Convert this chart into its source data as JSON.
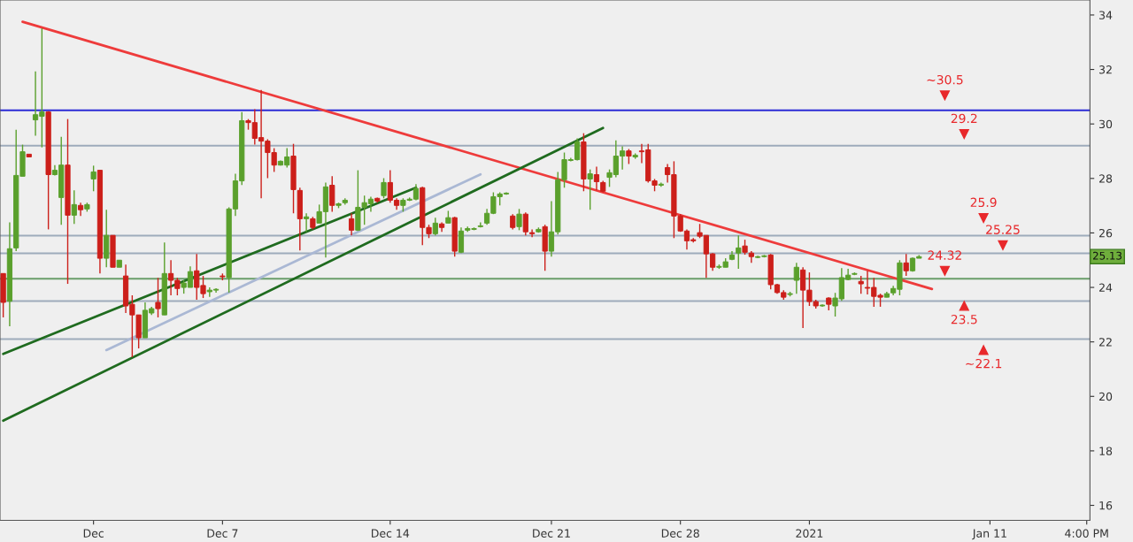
{
  "chart_data": {
    "type": "candlestick",
    "categories": [
      null,
      null,
      null,
      null,
      null,
      null,
      null,
      null,
      null,
      null,
      null,
      null,
      null,
      null,
      "Dec",
      null,
      null,
      null,
      null,
      null,
      null,
      null,
      null,
      null,
      null,
      null,
      null,
      null,
      null,
      null,
      null,
      null,
      null,
      null,
      "Dec 7",
      null,
      null,
      null,
      null,
      null,
      null,
      null,
      null,
      null,
      null,
      null,
      null,
      null,
      null,
      null,
      null,
      null,
      null,
      null,
      null,
      null,
      null,
      null,
      null,
      null,
      "Dec 14",
      null,
      null,
      null,
      null,
      null,
      null,
      null,
      null,
      null,
      null,
      null,
      null,
      null,
      null,
      null,
      null,
      null,
      null,
      null,
      null,
      null,
      null,
      null,
      null,
      "Dec 21",
      null,
      null,
      null,
      null,
      null,
      null,
      null,
      null,
      null,
      null,
      null,
      null,
      null,
      null,
      null,
      null,
      null,
      null,
      null,
      "Dec 28",
      null,
      null,
      null,
      null,
      null,
      null,
      null,
      null,
      null,
      null,
      null,
      null,
      null,
      null,
      null,
      null,
      null,
      null,
      null,
      "2021",
      null,
      null,
      null,
      null,
      null,
      null,
      null,
      null,
      null,
      null,
      null,
      null,
      null,
      null,
      null,
      null,
      null,
      null,
      null,
      null,
      null,
      null,
      null,
      null,
      null,
      null,
      null,
      "Jan 11",
      null,
      null,
      null,
      null,
      null,
      null,
      null,
      null,
      null,
      null,
      null,
      null,
      null,
      null,
      "4:00 PM"
    ],
    "ohlc": [
      [
        24.51,
        24.51,
        22.9,
        23.45
      ],
      [
        23.49,
        26.39,
        22.57,
        25.42
      ],
      [
        25.45,
        29.79,
        25.33,
        28.11
      ],
      [
        28.08,
        29.24,
        28.08,
        28.98
      ],
      [
        28.89,
        28.89,
        28.79,
        28.79
      ],
      [
        30.15,
        31.93,
        29.57,
        30.34
      ],
      [
        30.28,
        33.51,
        29.14,
        30.44
      ],
      [
        30.44,
        30.47,
        26.13,
        28.14
      ],
      [
        28.14,
        28.49,
        28.11,
        28.3
      ],
      [
        27.3,
        29.53,
        26.3,
        28.49
      ],
      [
        28.49,
        30.18,
        24.13,
        26.65
      ],
      [
        26.65,
        27.56,
        26.33,
        27.04
      ],
      [
        27.01,
        27.11,
        26.62,
        26.85
      ],
      [
        26.88,
        27.11,
        26.78,
        27.04
      ],
      [
        27.98,
        28.47,
        27.53,
        28.24
      ],
      [
        28.3,
        28.3,
        24.51,
        25.07
      ],
      [
        25.07,
        26.85,
        24.74,
        25.91
      ],
      [
        25.91,
        25.91,
        24.74,
        24.74
      ],
      [
        24.74,
        25.0,
        24.74,
        25.0
      ],
      [
        24.42,
        24.84,
        23.06,
        23.32
      ],
      [
        23.38,
        23.71,
        21.44,
        22.99
      ],
      [
        22.99,
        22.99,
        21.76,
        22.15
      ],
      [
        22.15,
        23.45,
        22.15,
        23.16
      ],
      [
        23.06,
        23.29,
        22.99,
        23.22
      ],
      [
        23.45,
        24.35,
        22.9,
        23.22
      ],
      [
        22.99,
        25.65,
        22.99,
        24.51
      ],
      [
        24.51,
        25.0,
        23.71,
        24.26
      ],
      [
        24.26,
        24.35,
        23.71,
        23.96
      ],
      [
        24.0,
        24.26,
        23.77,
        24.16
      ],
      [
        24.0,
        24.77,
        24.0,
        24.58
      ],
      [
        24.61,
        25.23,
        23.55,
        24.0
      ],
      [
        24.07,
        24.42,
        23.61,
        23.77
      ],
      [
        23.84,
        24.0,
        23.65,
        23.9
      ],
      [
        23.9,
        23.97,
        23.81,
        23.93
      ],
      [
        24.42,
        24.51,
        24.26,
        24.39
      ],
      [
        24.36,
        26.94,
        23.81,
        26.88
      ],
      [
        26.88,
        28.17,
        26.62,
        27.91
      ],
      [
        27.91,
        30.44,
        27.76,
        30.12
      ],
      [
        30.12,
        30.18,
        29.79,
        30.05
      ],
      [
        30.05,
        30.54,
        29.24,
        29.47
      ],
      [
        29.5,
        31.25,
        27.27,
        29.37
      ],
      [
        29.37,
        29.44,
        28.01,
        28.95
      ],
      [
        28.95,
        29.11,
        28.24,
        28.49
      ],
      [
        28.49,
        28.66,
        28.47,
        28.63
      ],
      [
        28.49,
        29.11,
        28.4,
        28.79
      ],
      [
        28.82,
        29.27,
        26.72,
        27.59
      ],
      [
        27.56,
        27.66,
        25.36,
        26.52
      ],
      [
        26.52,
        26.72,
        26.04,
        26.59
      ],
      [
        26.52,
        26.59,
        26.13,
        26.2
      ],
      [
        26.36,
        27.04,
        26.36,
        26.78
      ],
      [
        26.78,
        27.85,
        25.1,
        27.69
      ],
      [
        27.75,
        28.08,
        26.78,
        27.01
      ],
      [
        27.01,
        27.11,
        26.91,
        27.07
      ],
      [
        27.11,
        27.27,
        27.04,
        27.2
      ],
      [
        26.52,
        26.72,
        25.91,
        26.1
      ],
      [
        26.1,
        28.3,
        26.07,
        26.94
      ],
      [
        26.94,
        27.37,
        26.3,
        27.11
      ],
      [
        27.07,
        27.33,
        26.78,
        27.24
      ],
      [
        27.27,
        27.3,
        27.11,
        27.17
      ],
      [
        27.37,
        28.01,
        27.27,
        27.85
      ],
      [
        27.85,
        28.3,
        27.11,
        27.2
      ],
      [
        27.2,
        27.27,
        26.85,
        27.01
      ],
      [
        27.01,
        27.27,
        26.78,
        27.2
      ],
      [
        27.2,
        27.3,
        27.17,
        27.24
      ],
      [
        27.24,
        27.79,
        27.2,
        27.63
      ],
      [
        27.66,
        27.69,
        25.55,
        26.2
      ],
      [
        26.2,
        26.3,
        25.81,
        25.97
      ],
      [
        25.97,
        26.56,
        25.91,
        26.36
      ],
      [
        26.33,
        26.39,
        26.04,
        26.2
      ],
      [
        26.36,
        26.81,
        26.36,
        26.56
      ],
      [
        26.56,
        26.59,
        25.13,
        25.33
      ],
      [
        25.29,
        26.2,
        25.26,
        26.07
      ],
      [
        26.1,
        26.23,
        26.04,
        26.16
      ],
      [
        26.13,
        26.2,
        26.1,
        26.16
      ],
      [
        26.23,
        26.39,
        26.2,
        26.26
      ],
      [
        26.36,
        26.88,
        26.3,
        26.72
      ],
      [
        26.72,
        27.49,
        26.69,
        27.33
      ],
      [
        27.33,
        27.49,
        27.01,
        27.43
      ],
      [
        27.43,
        27.49,
        27.4,
        27.46
      ],
      [
        26.62,
        26.69,
        26.13,
        26.2
      ],
      [
        26.23,
        26.88,
        26.1,
        26.69
      ],
      [
        26.69,
        26.75,
        25.91,
        26.04
      ],
      [
        26.01,
        26.13,
        25.84,
        25.97
      ],
      [
        26.04,
        26.2,
        26.01,
        26.13
      ],
      [
        26.23,
        26.3,
        24.61,
        25.33
      ],
      [
        25.33,
        27.17,
        25.13,
        26.04
      ],
      [
        26.04,
        28.24,
        25.94,
        27.95
      ],
      [
        27.95,
        28.95,
        27.66,
        28.69
      ],
      [
        28.66,
        28.76,
        28.63,
        28.69
      ],
      [
        28.69,
        29.47,
        28.66,
        29.34
      ],
      [
        29.34,
        29.66,
        27.53,
        27.98
      ],
      [
        27.98,
        28.33,
        26.85,
        28.17
      ],
      [
        28.14,
        28.43,
        27.56,
        27.88
      ],
      [
        27.85,
        27.91,
        27.49,
        27.53
      ],
      [
        28.04,
        28.33,
        27.69,
        28.21
      ],
      [
        28.14,
        29.4,
        28.04,
        28.82
      ],
      [
        28.82,
        29.18,
        28.33,
        29.01
      ],
      [
        29.01,
        29.08,
        28.53,
        28.82
      ],
      [
        28.79,
        28.92,
        28.72,
        28.85
      ],
      [
        29.01,
        29.27,
        28.56,
        28.98
      ],
      [
        29.05,
        29.27,
        27.85,
        27.91
      ],
      [
        27.91,
        27.98,
        27.53,
        27.75
      ],
      [
        27.75,
        27.85,
        27.69,
        27.79
      ],
      [
        28.4,
        28.53,
        27.85,
        28.14
      ],
      [
        28.14,
        28.63,
        25.81,
        26.62
      ],
      [
        26.62,
        26.69,
        26.04,
        26.07
      ],
      [
        26.07,
        26.13,
        25.39,
        25.71
      ],
      [
        25.75,
        25.81,
        25.65,
        25.71
      ],
      [
        26.01,
        26.33,
        25.81,
        25.88
      ],
      [
        25.91,
        25.91,
        24.35,
        25.23
      ],
      [
        25.23,
        25.26,
        24.61,
        24.74
      ],
      [
        24.74,
        24.84,
        24.68,
        24.77
      ],
      [
        24.74,
        25.07,
        24.74,
        24.94
      ],
      [
        25.03,
        25.33,
        25.0,
        25.19
      ],
      [
        25.26,
        25.91,
        24.68,
        25.45
      ],
      [
        25.52,
        25.75,
        25.2,
        25.29
      ],
      [
        25.26,
        25.33,
        24.9,
        25.13
      ],
      [
        25.1,
        25.16,
        25.07,
        25.13
      ],
      [
        25.13,
        25.19,
        25.1,
        25.16
      ],
      [
        25.19,
        25.23,
        23.93,
        24.1
      ],
      [
        24.1,
        24.13,
        23.77,
        23.81
      ],
      [
        23.81,
        23.9,
        23.55,
        23.64
      ],
      [
        23.74,
        23.84,
        23.67,
        23.77
      ],
      [
        24.26,
        24.9,
        23.77,
        24.74
      ],
      [
        24.64,
        24.74,
        22.51,
        23.9
      ],
      [
        23.9,
        24.55,
        23.32,
        23.48
      ],
      [
        23.48,
        23.55,
        23.22,
        23.32
      ],
      [
        23.32,
        23.38,
        23.29,
        23.35
      ],
      [
        23.61,
        23.64,
        23.16,
        23.38
      ],
      [
        23.32,
        23.8,
        22.93,
        23.61
      ],
      [
        23.58,
        24.71,
        23.51,
        24.36
      ],
      [
        24.29,
        24.68,
        24.26,
        24.45
      ],
      [
        24.48,
        24.55,
        24.45,
        24.51
      ],
      [
        24.22,
        24.42,
        23.77,
        24.13
      ],
      [
        24.0,
        24.61,
        23.74,
        23.97
      ],
      [
        24.0,
        24.35,
        23.29,
        23.67
      ],
      [
        23.71,
        23.77,
        23.29,
        23.64
      ],
      [
        23.64,
        23.84,
        23.64,
        23.77
      ],
      [
        23.8,
        24.06,
        23.71,
        23.96
      ],
      [
        23.93,
        25.0,
        23.71,
        24.9
      ],
      [
        24.9,
        25.23,
        24.42,
        24.61
      ],
      [
        24.61,
        25.1,
        24.58,
        25.07
      ],
      [
        25.07,
        25.19,
        25.07,
        25.13
      ],
      null,
      null,
      null,
      null,
      null,
      null,
      null,
      null,
      null,
      null,
      null,
      null,
      null,
      null,
      null,
      null,
      null,
      null,
      null,
      null,
      null,
      null,
      null,
      null,
      null,
      null
    ],
    "series": [
      {
        "type": "line",
        "color": "#ee3b3b",
        "values": [
          null,
          null,
          null,
          33.75,
          null,
          null,
          null,
          null,
          null,
          null,
          null,
          null,
          null,
          null,
          null,
          null,
          null,
          null,
          null,
          null,
          null,
          null,
          null,
          null,
          null,
          null,
          null,
          null,
          null,
          null,
          null,
          null,
          null,
          null,
          null,
          null,
          null,
          null,
          null,
          null,
          null,
          null,
          null,
          null,
          null,
          null,
          null,
          null,
          null,
          null,
          null,
          null,
          null,
          null,
          null,
          null,
          null,
          null,
          null,
          null,
          null,
          null,
          null,
          null,
          null,
          null,
          null,
          null,
          null,
          null,
          null,
          null,
          null,
          null,
          null,
          null,
          null,
          null,
          null,
          null,
          null,
          null,
          null,
          null,
          null,
          null,
          null,
          null,
          null,
          null,
          null,
          null,
          null,
          null,
          null,
          null,
          null,
          null,
          null,
          null,
          null,
          null,
          null,
          null,
          null,
          null,
          null,
          null,
          null,
          null,
          null,
          null,
          null,
          null,
          null,
          null,
          null,
          null,
          null,
          null,
          null,
          null,
          null,
          null,
          null,
          null,
          null,
          null,
          null,
          null,
          null,
          null,
          null,
          null,
          null,
          null,
          null,
          null,
          null,
          null,
          null,
          null,
          null,
          null,
          23.94,
          null,
          null,
          null,
          null,
          null,
          null,
          null,
          null,
          null,
          null,
          null,
          null,
          null,
          null,
          null,
          null,
          null,
          null,
          null,
          null,
          null,
          null,
          null,
          null
        ]
      },
      {
        "type": "line",
        "color": "#1f6b1f",
        "values": [
          21.56,
          null,
          null,
          null,
          null,
          null,
          null,
          null,
          null,
          null,
          null,
          null,
          null,
          null,
          null,
          null,
          null,
          null,
          null,
          null,
          null,
          null,
          null,
          null,
          null,
          null,
          null,
          null,
          null,
          null,
          null,
          null,
          null,
          null,
          null,
          null,
          null,
          null,
          null,
          null,
          null,
          null,
          null,
          null,
          null,
          null,
          null,
          null,
          null,
          null,
          null,
          null,
          null,
          null,
          null,
          null,
          null,
          null,
          null,
          null,
          null,
          null,
          null,
          null,
          27.66,
          null,
          null,
          null,
          null,
          null,
          null,
          null,
          null,
          null,
          null,
          null,
          null,
          null,
          null,
          null,
          null,
          null,
          null,
          null,
          null,
          null,
          null,
          null,
          null,
          null,
          null,
          null,
          null,
          null,
          null,
          null,
          null,
          null,
          null,
          null,
          null,
          null,
          null,
          null,
          null,
          null,
          null,
          null,
          null,
          null,
          null,
          null,
          null,
          null,
          null,
          null,
          null,
          null,
          null,
          null,
          null,
          null,
          null,
          null,
          null,
          null,
          null,
          null,
          null,
          null,
          null,
          null,
          null,
          null,
          null,
          null,
          null,
          null,
          null,
          null,
          null,
          null,
          null,
          null,
          null,
          null,
          null,
          null,
          null,
          null,
          null,
          null,
          null,
          null,
          null,
          null,
          null,
          null,
          null,
          null,
          null,
          null,
          null,
          null,
          null,
          null,
          null,
          null,
          null
        ]
      },
      {
        "type": "line",
        "color": "#1f6b1f",
        "values": [
          19.11,
          null,
          null,
          null,
          null,
          null,
          null,
          null,
          null,
          null,
          null,
          null,
          null,
          null,
          null,
          null,
          null,
          null,
          null,
          null,
          null,
          null,
          null,
          null,
          null,
          null,
          null,
          null,
          null,
          null,
          null,
          null,
          null,
          null,
          null,
          null,
          null,
          null,
          null,
          null,
          null,
          null,
          null,
          null,
          null,
          null,
          null,
          null,
          null,
          null,
          null,
          null,
          null,
          null,
          null,
          null,
          null,
          null,
          null,
          null,
          null,
          null,
          null,
          null,
          null,
          null,
          null,
          null,
          null,
          null,
          null,
          null,
          null,
          null,
          null,
          null,
          null,
          null,
          null,
          null,
          null,
          null,
          null,
          null,
          null,
          null,
          null,
          null,
          null,
          null,
          null,
          null,
          null,
          29.85,
          null,
          null,
          null,
          null,
          null,
          null,
          null,
          null,
          null,
          null,
          null,
          null,
          null,
          null,
          null,
          null,
          null,
          null,
          null,
          null,
          null,
          null,
          null,
          null,
          null,
          null,
          null,
          null,
          null,
          null,
          null,
          null,
          null,
          null,
          null,
          null,
          null,
          null,
          null,
          null,
          null,
          null,
          null,
          null,
          null,
          null,
          null,
          null,
          null,
          null,
          null,
          null,
          null,
          null,
          null,
          null,
          null,
          null,
          null,
          null,
          null,
          null,
          null,
          null,
          null,
          null,
          null,
          null,
          null,
          null,
          null,
          null,
          null,
          null,
          null
        ]
      },
      {
        "type": "line",
        "color": "#aab8d4",
        "values": [
          null,
          null,
          null,
          null,
          null,
          null,
          null,
          null,
          null,
          null,
          null,
          null,
          null,
          null,
          null,
          null,
          21.7,
          null,
          null,
          null,
          null,
          null,
          null,
          null,
          null,
          null,
          null,
          null,
          null,
          null,
          null,
          null,
          null,
          null,
          null,
          null,
          null,
          null,
          null,
          null,
          null,
          null,
          null,
          null,
          null,
          null,
          null,
          null,
          null,
          null,
          null,
          null,
          null,
          null,
          null,
          null,
          null,
          null,
          null,
          null,
          null,
          null,
          null,
          null,
          null,
          null,
          null,
          null,
          null,
          null,
          null,
          null,
          null,
          null,
          28.15,
          null,
          null,
          null,
          null,
          null,
          null,
          null,
          null,
          null,
          null,
          null,
          null,
          null,
          null,
          null,
          null,
          null,
          null,
          null,
          null,
          null,
          null,
          null,
          null,
          null,
          null,
          null,
          null,
          null,
          null,
          null,
          null,
          null,
          null,
          null,
          null,
          null,
          null,
          null,
          null,
          null,
          null,
          null,
          null,
          null,
          null,
          null,
          null,
          null,
          null,
          null,
          null,
          null,
          null,
          null,
          null,
          null,
          null,
          null,
          null,
          null,
          null,
          null,
          null,
          null,
          null,
          null,
          null,
          null,
          null,
          null,
          null,
          null,
          null,
          null,
          null,
          null,
          null,
          null,
          null,
          null,
          null,
          null,
          null,
          null,
          null,
          null,
          null,
          null,
          null,
          null,
          null,
          null,
          null
        ]
      }
    ],
    "ref_lines": [
      {
        "axis": "y",
        "value": 30.5,
        "color": "#2b2bd6"
      },
      {
        "axis": "y",
        "value": 29.2,
        "color": "#9eabbb"
      },
      {
        "axis": "y",
        "value": 25.9,
        "color": "#9eabbb"
      },
      {
        "axis": "y",
        "value": 25.25,
        "color": "#9eabbb"
      },
      {
        "axis": "y",
        "value": 24.32,
        "color": "#6a9e6a"
      },
      {
        "axis": "y",
        "value": 23.5,
        "color": "#9eabbb"
      },
      {
        "axis": "y",
        "value": 22.1,
        "color": "#9eabbb"
      }
    ],
    "annotations": [
      {
        "text": "~30.5",
        "y": 31.05
      },
      {
        "text": "29.2",
        "y": 29.63
      },
      {
        "text": "25.9",
        "y": 26.55
      },
      {
        "text": "25.25",
        "y": 25.55
      },
      {
        "text": "24.32",
        "y": 24.61
      },
      {
        "text": "23.5",
        "y": 23.32
      },
      {
        "text": "~22.1",
        "y": 21.7
      },
      {
        "text": "25.13",
        "y": 25.13
      }
    ],
    "ylim": [
      15.45,
      34.55
    ],
    "yticks": [
      16,
      18,
      20,
      22,
      24,
      26,
      28,
      30,
      32,
      34
    ],
    "grid": false
  }
}
